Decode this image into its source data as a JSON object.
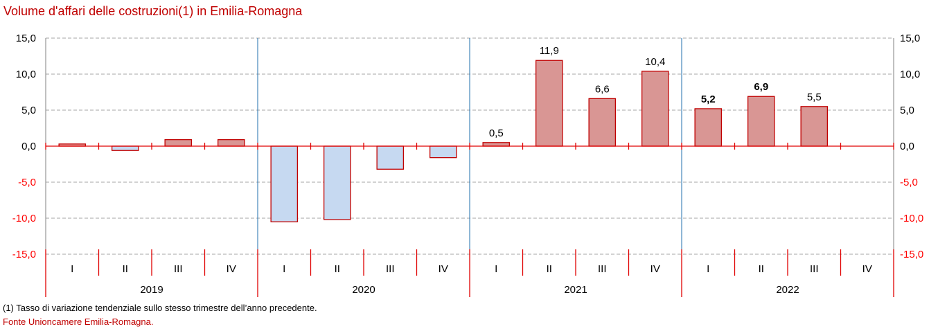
{
  "title": "Volume d'affari delle costruzioni(1) in Emilia-Romagna",
  "footnote": "(1) Tasso di variazione tendenziale sullo stesso trimestre dell’anno precedente.",
  "source": "Fonte Unioncamere Emilia-Romagna.",
  "colors": {
    "positive_fill": "#d99694",
    "positive_fill_first": "#e6a5a3",
    "negative_fill": "#c6d9f1",
    "bar_border": "#c00000",
    "axis_zero": "#e00000",
    "year_separator": "#1f6fae",
    "grid": "#a6a6a6",
    "negative_tick_label": "#ff0000",
    "positive_tick_label": "#000000"
  },
  "chart_data": {
    "type": "bar",
    "title": "Volume d'affari delle costruzioni(1) in Emilia-Romagna",
    "xlabel": "",
    "ylabel": "",
    "ylim": [
      -15,
      15
    ],
    "yticks": [
      15,
      10,
      5,
      0,
      -5,
      -10,
      -15
    ],
    "ytick_labels": [
      "15,0",
      "10,0",
      "5,0",
      "0,0",
      "-5,0",
      "-10,0",
      "-15,0"
    ],
    "grid": true,
    "legend": "none",
    "years": [
      "2019",
      "2020",
      "2021",
      "2022"
    ],
    "quarters": [
      "I",
      "II",
      "III",
      "IV"
    ],
    "categories": [
      "2019 I",
      "2019 II",
      "2019 III",
      "2019 IV",
      "2020 I",
      "2020 II",
      "2020 III",
      "2020 IV",
      "2021 I",
      "2021 II",
      "2021 III",
      "2021 IV",
      "2022 I",
      "2022 II",
      "2022 III",
      "2022 IV"
    ],
    "values": [
      0.3,
      -0.6,
      0.9,
      0.9,
      -10.5,
      -10.2,
      -3.2,
      -1.6,
      0.5,
      11.9,
      6.6,
      10.4,
      5.2,
      6.9,
      5.5,
      null
    ],
    "data_labels": [
      null,
      null,
      null,
      null,
      null,
      null,
      null,
      null,
      "0,5",
      "11,9",
      "6,6",
      "10,4",
      "5,2",
      "6,9",
      "5,5",
      null
    ],
    "bold_labels": [
      false,
      false,
      false,
      false,
      false,
      false,
      false,
      false,
      false,
      false,
      false,
      false,
      true,
      true,
      false,
      false
    ]
  }
}
